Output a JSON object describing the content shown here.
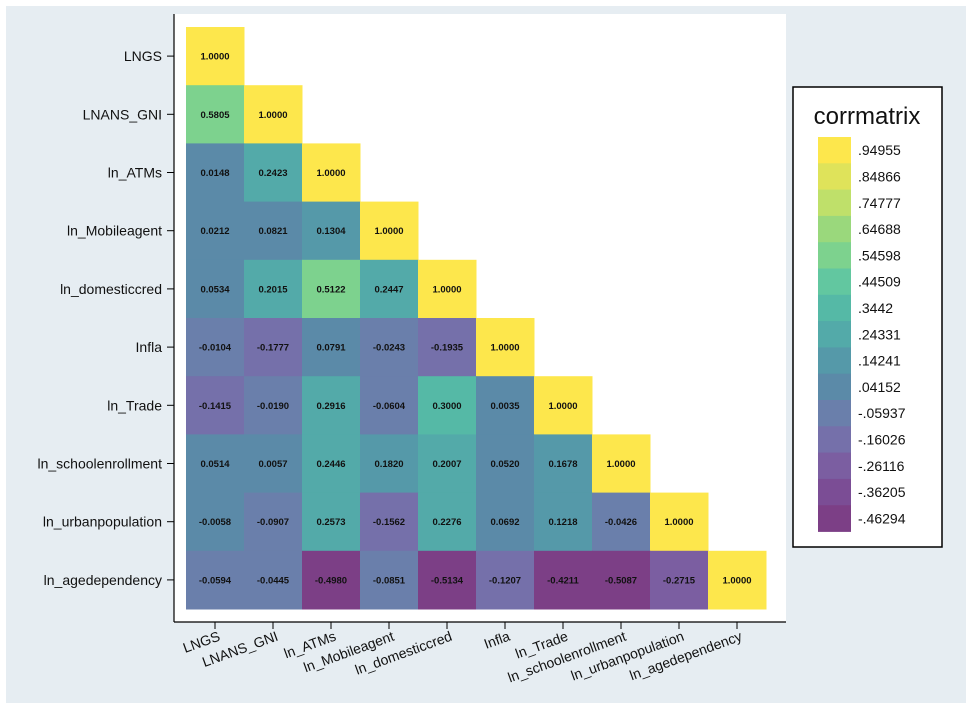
{
  "chart_data": {
    "type": "heatmap",
    "title": "",
    "xlabel": "",
    "ylabel": "",
    "variables": [
      "LNGS",
      "LNANS_GNI",
      "ln_ATMs",
      "ln_Mobileagent",
      "ln_domesticcred",
      "Infla",
      "ln_Trade",
      "ln_schoolenrollment",
      "ln_urbanpopulation",
      "ln_agedependency"
    ],
    "values": [
      [
        1.0
      ],
      [
        0.5805,
        1.0
      ],
      [
        0.0148,
        0.2423,
        1.0
      ],
      [
        0.0212,
        0.0821,
        0.1304,
        1.0
      ],
      [
        0.0534,
        0.2015,
        0.5122,
        0.2447,
        1.0
      ],
      [
        -0.0104,
        -0.1777,
        0.0791,
        -0.0243,
        -0.1935,
        1.0
      ],
      [
        -0.1415,
        -0.019,
        0.2916,
        -0.0604,
        0.3,
        0.0035,
        1.0
      ],
      [
        0.0514,
        0.0057,
        0.2446,
        0.182,
        0.2007,
        0.052,
        0.1678,
        1.0
      ],
      [
        -0.0058,
        -0.0907,
        0.2573,
        -0.1562,
        0.2276,
        0.0692,
        0.1218,
        -0.0426,
        1.0
      ],
      [
        -0.0594,
        -0.0445,
        -0.498,
        -0.0851,
        -0.5134,
        -0.1207,
        -0.4211,
        -0.5087,
        -0.2715,
        1.0
      ]
    ],
    "value_labels": [
      [
        "1.0000"
      ],
      [
        "0.5805",
        "1.0000"
      ],
      [
        "0.0148",
        "0.2423",
        "1.0000"
      ],
      [
        "0.0212",
        "0.0821",
        "0.1304",
        "1.0000"
      ],
      [
        "0.0534",
        "0.2015",
        "0.5122",
        "0.2447",
        "1.0000"
      ],
      [
        "-0.0104",
        "-0.1777",
        "0.0791",
        "-0.0243",
        "-0.1935",
        "1.0000"
      ],
      [
        "-0.1415",
        "-0.0190",
        "0.2916",
        "-0.0604",
        "0.3000",
        "0.0035",
        "1.0000"
      ],
      [
        "0.0514",
        "0.0057",
        "0.2446",
        "0.1820",
        "0.2007",
        "0.0520",
        "0.1678",
        "1.0000"
      ],
      [
        "-0.0058",
        "-0.0907",
        "0.2573",
        "-0.1562",
        "0.2276",
        "0.0692",
        "0.1218",
        "-0.0426",
        "1.0000"
      ],
      [
        "-0.0594",
        "-0.0445",
        "-0.4980",
        "-0.0851",
        "-0.5134",
        "-0.1207",
        "-0.4211",
        "-0.5087",
        "-0.2715",
        "1.0000"
      ]
    ],
    "legend": {
      "title": "corrmatrix",
      "position": "right",
      "entries": [
        {
          "label": ".94955",
          "color": "#fde74c"
        },
        {
          "label": ".84866",
          "color": "#dfe35a"
        },
        {
          "label": ".74777",
          "color": "#bfe06a"
        },
        {
          "label": ".64688",
          "color": "#9ad87c"
        },
        {
          "label": ".54598",
          "color": "#7dd28e"
        },
        {
          "label": ".44509",
          "color": "#62c7a0"
        },
        {
          "label": ".3442",
          "color": "#55b9a6"
        },
        {
          "label": ".24331",
          "color": "#53aaa9"
        },
        {
          "label": ".14241",
          "color": "#5599a9"
        },
        {
          "label": ".04152",
          "color": "#5b8aa8"
        },
        {
          "label": "-.05937",
          "color": "#6a7fab"
        },
        {
          "label": "-.16026",
          "color": "#7570aa"
        },
        {
          "label": "-.26116",
          "color": "#7b5ea1"
        },
        {
          "label": "-.36205",
          "color": "#7b4d95"
        },
        {
          "label": "-.46294",
          "color": "#7c3f86"
        }
      ]
    }
  }
}
